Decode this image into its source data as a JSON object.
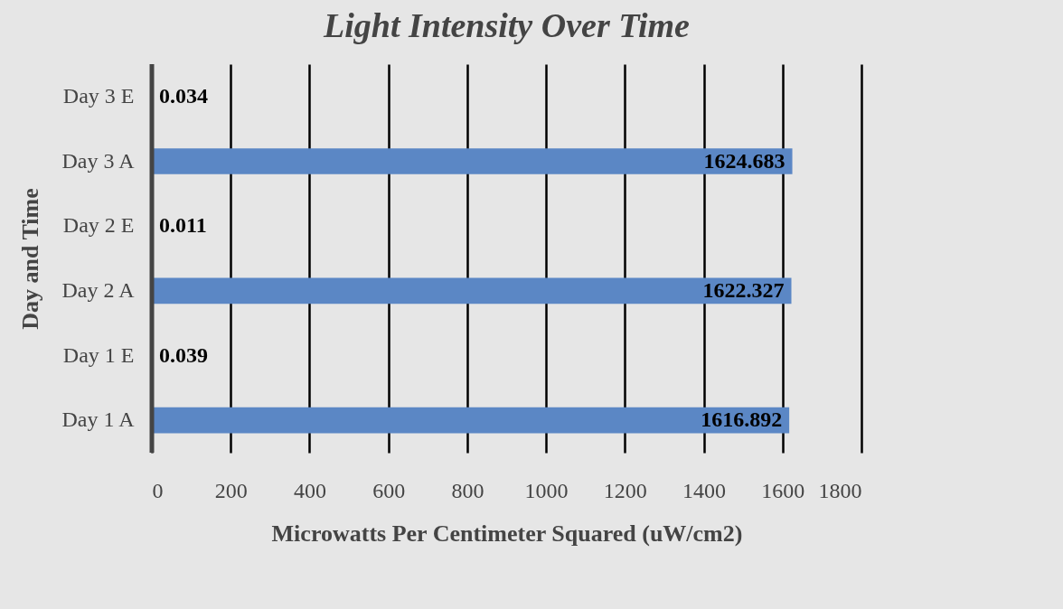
{
  "chart_data": {
    "type": "bar",
    "orientation": "horizontal",
    "title": "Light Intensity Over  Time",
    "xlabel": "Microwatts Per Centimeter Squared (uW/cm2)",
    "ylabel": "Day and  Time",
    "categories": [
      "Day 3 E",
      "Day 3 A",
      "Day 2 E",
      "Day 2 A",
      "Day  1 E",
      "Day  1 A"
    ],
    "values": [
      0.034,
      1624.683,
      0.011,
      1622.327,
      0.039,
      1616.892
    ],
    "color": "#5b87c5",
    "xlim": [
      0,
      1800
    ],
    "xticks": [
      0,
      200,
      400,
      600,
      800,
      1000,
      1200,
      1400,
      1600,
      1800
    ],
    "grid": "x",
    "data_labels": true
  }
}
